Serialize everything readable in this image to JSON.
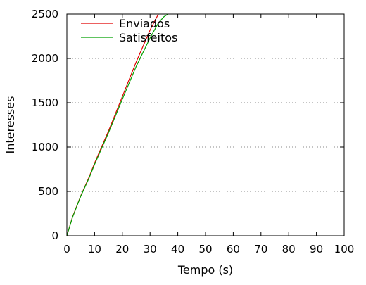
{
  "chart_data": {
    "type": "line",
    "title": "",
    "xlabel": "Tempo (s)",
    "ylabel": "Interesses",
    "xlim": [
      0,
      100
    ],
    "ylim": [
      0,
      2500
    ],
    "xticks": [
      0,
      10,
      20,
      30,
      40,
      50,
      60,
      70,
      80,
      90,
      100
    ],
    "yticks": [
      0,
      500,
      1000,
      1500,
      2000,
      2500
    ],
    "grid": "horizontal-dotted",
    "legend_position": "top-left",
    "series": [
      {
        "name": "Enviados",
        "color": "#e00000",
        "x": [
          0,
          2,
          5,
          8,
          10,
          15,
          20,
          25,
          30,
          33
        ],
        "y": [
          0,
          210,
          450,
          660,
          820,
          1180,
          1570,
          1960,
          2320,
          2500
        ]
      },
      {
        "name": "Satisfeitos",
        "color": "#00a000",
        "x": [
          0,
          2,
          5,
          8,
          10,
          15,
          20,
          25,
          30,
          33,
          35,
          36.5
        ],
        "y": [
          0,
          205,
          445,
          650,
          805,
          1160,
          1540,
          1910,
          2230,
          2400,
          2470,
          2500
        ]
      }
    ]
  }
}
